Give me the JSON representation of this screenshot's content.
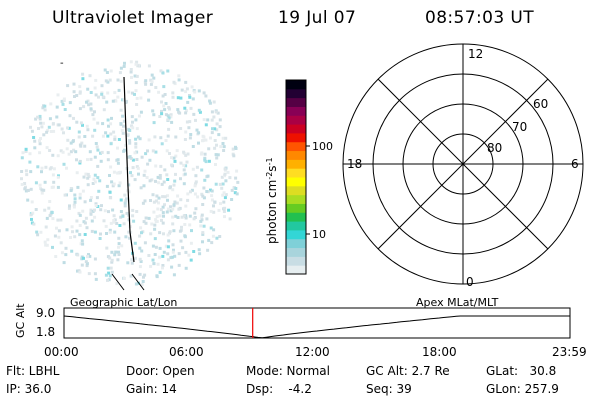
{
  "header": {
    "instrument": "Ultraviolet Imager",
    "date": "19 Jul 07",
    "time": "08:57:03 UT"
  },
  "colorbar": {
    "label_html": "photon cm<tspan baseline-shift=\"super\" font-size=\"8\">-2</tspan>s<tspan baseline-shift=\"super\" font-size=\"8\">-1</tspan>",
    "ticks": [
      "100",
      "10"
    ],
    "colors": [
      "#e6eef0",
      "#c8dde4",
      "#a8d4dc",
      "#7fd0d8",
      "#33d6d6",
      "#22c8a0",
      "#22c050",
      "#66cc22",
      "#aadd22",
      "#dddd22",
      "#ffff00",
      "#ffdd22",
      "#ffb000",
      "#ff8800",
      "#ff5500",
      "#ee1100",
      "#cc0022",
      "#aa0044",
      "#880055",
      "#550044",
      "#220033",
      "#000011"
    ]
  },
  "polar_grid": {
    "mlt_labels": {
      "top": "12",
      "left": "18",
      "right": "6",
      "bottom": "0"
    },
    "lat_labels": [
      "60",
      "70",
      "80"
    ]
  },
  "timeline": {
    "left_title": "Geographic Lat/Lon",
    "right_title": "Apex  MLat/MLT",
    "ylabel": "GC Alt",
    "y_ticks": [
      "9.0",
      "1.8"
    ],
    "x_ticks": [
      "00:00",
      "06:00",
      "12:00",
      "18:00",
      "23:59"
    ],
    "current_fraction": 0.373
  },
  "status": {
    "flt": "Flt: LBHL",
    "ip": "IP: 36.0",
    "door": "Door: Open",
    "gain": "Gain: 14",
    "mode": "Mode: Normal",
    "dsp": "Dsp:    -4.2",
    "gcalt": "GC Alt: 2.7 Re",
    "seq": "Seq: 39",
    "glat": "GLat:   30.8",
    "glon": "GLon: 257.9"
  }
}
